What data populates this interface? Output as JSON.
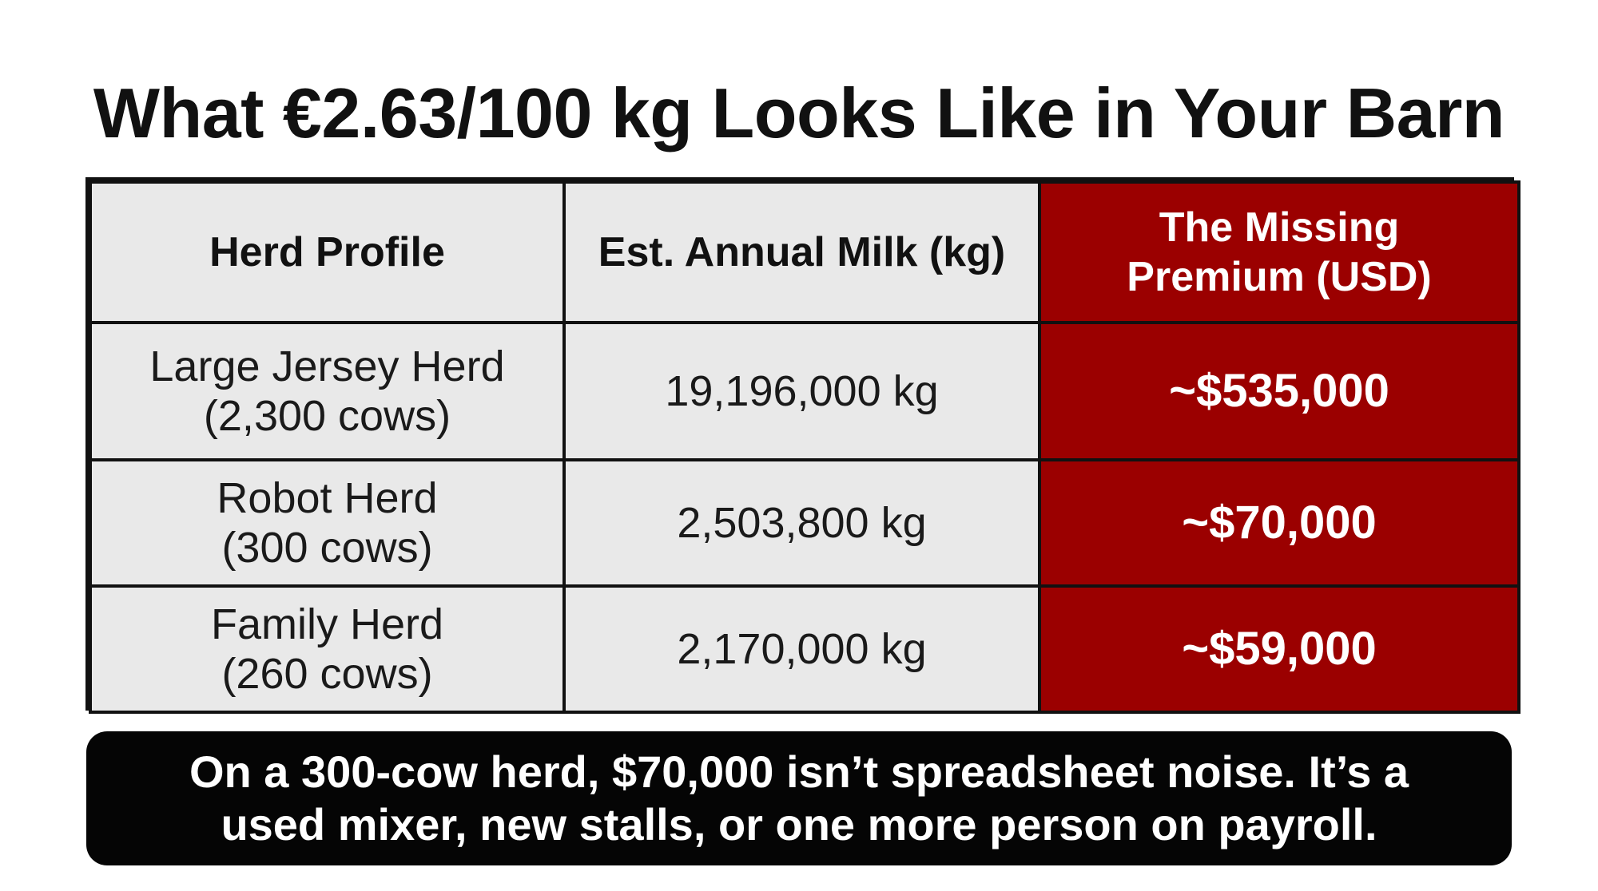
{
  "title": "What €2.63/100 kg Looks Like in Your Barn",
  "accent_color": "#9b0000",
  "chart_data": {
    "type": "table",
    "columns": [
      "Herd Profile",
      "Est. Annual Milk (kg)",
      "The Missing Premium (USD)"
    ],
    "header_lines": {
      "premium": [
        "The Missing",
        "Premium (USD)"
      ]
    },
    "rows": [
      {
        "profile_line1": "Large Jersey Herd",
        "profile_line2": "(2,300 cows)",
        "milk": "19,196,000 kg",
        "premium": "~$535,000"
      },
      {
        "profile_line1": "Robot Herd",
        "profile_line2": "(300 cows)",
        "milk": "2,503,800 kg",
        "premium": "~$70,000"
      },
      {
        "profile_line1": "Family Herd",
        "profile_line2": "(260 cows)",
        "milk": "2,170,000 kg",
        "premium": "~$59,000"
      }
    ]
  },
  "callout": {
    "line1": "On a 300-cow herd, $70,000 isn’t spreadsheet noise. It’s a",
    "line2": "used mixer, new stalls, or one more person on payroll."
  }
}
